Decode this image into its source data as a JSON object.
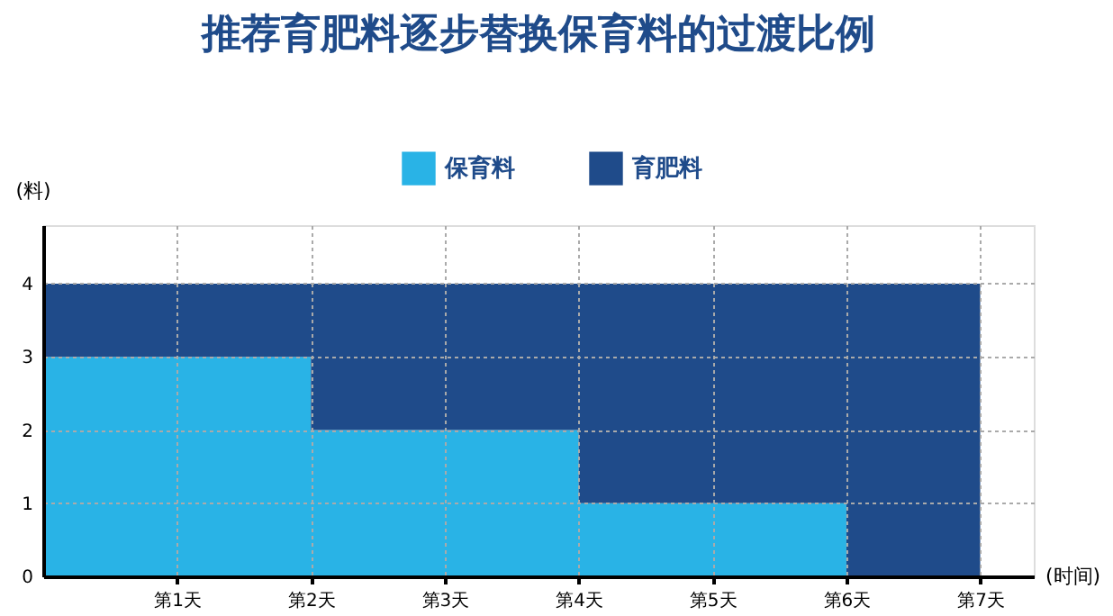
{
  "chart_data": {
    "type": "area",
    "title": "推荐育肥料逐步替换保育料的过渡比例",
    "xlabel": "(时间)",
    "ylabel": "(料)",
    "categories": [
      null,
      "第1天",
      "第2天",
      "第3天",
      "第4天",
      "第5天",
      "第6天",
      "第7天"
    ],
    "stacked": true,
    "series": [
      {
        "name": "保育料",
        "color": "#29b3e6",
        "values": [
          3,
          3,
          2,
          2,
          1,
          1,
          0,
          0
        ]
      },
      {
        "name": "育肥料",
        "color": "#1f4b8a",
        "values": [
          1,
          1,
          2,
          2,
          3,
          3,
          4,
          4
        ]
      }
    ],
    "ylim": [
      0,
      4.8
    ],
    "yticks": [
      0,
      1,
      2,
      3,
      4
    ],
    "grid": true,
    "legend": "top"
  }
}
